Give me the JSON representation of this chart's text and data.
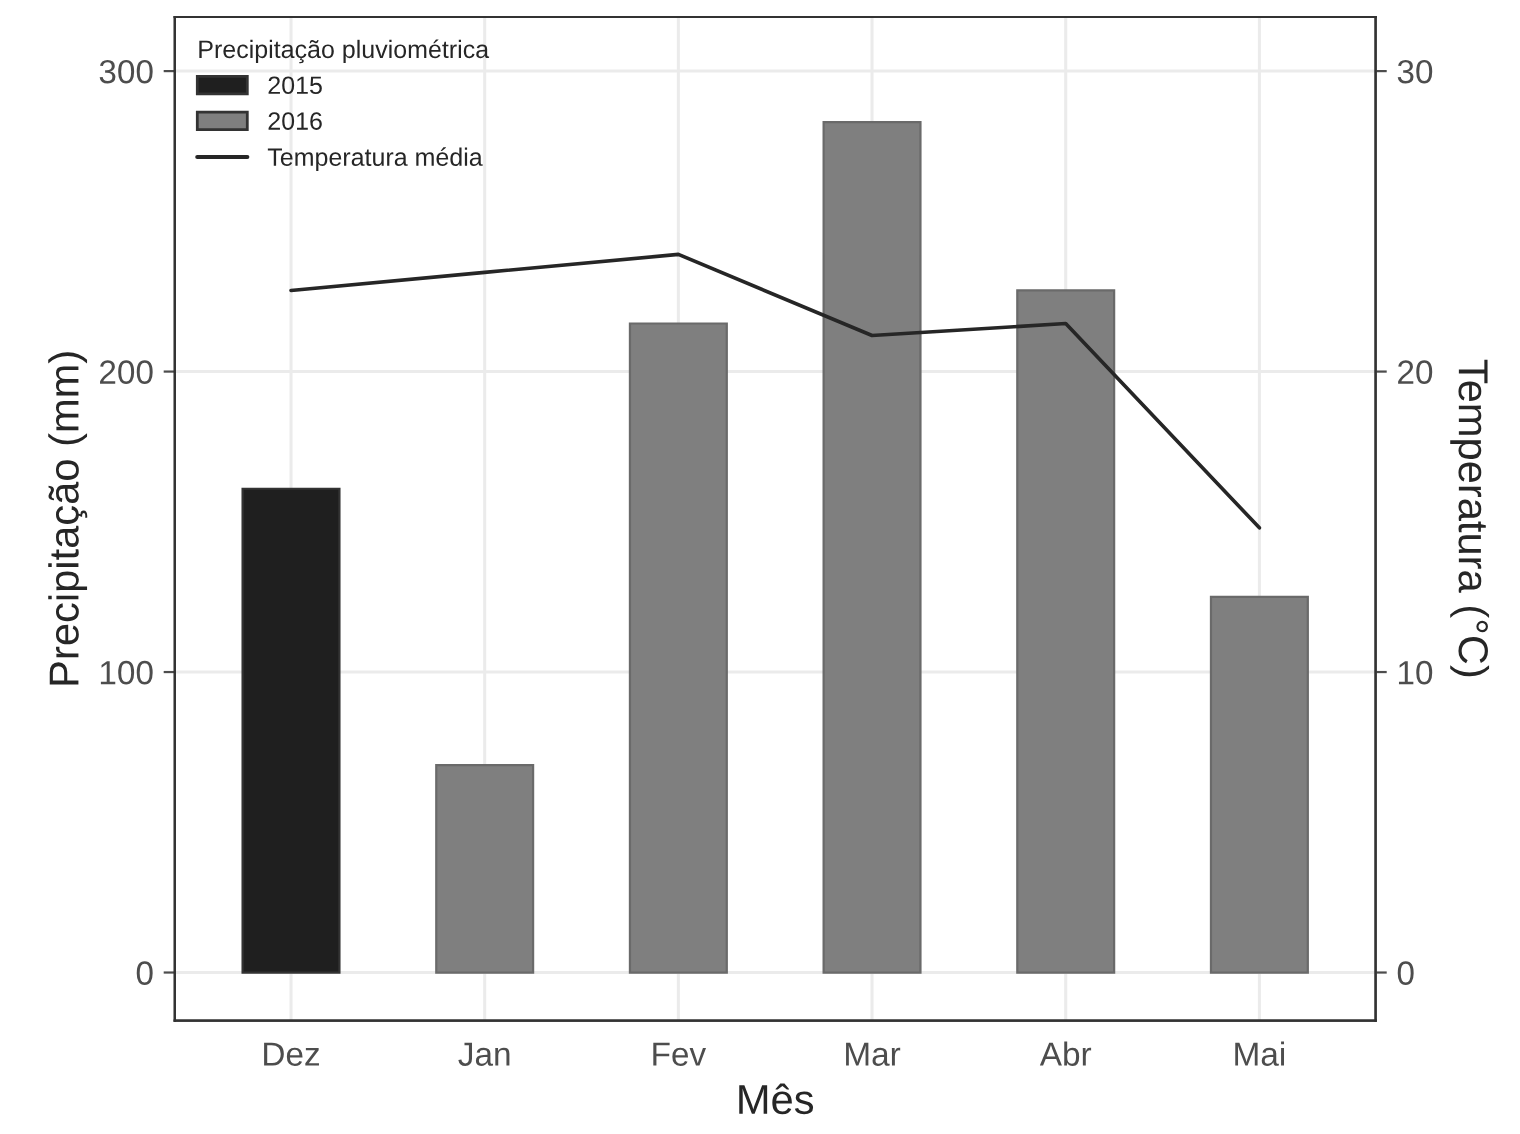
{
  "chart_data": {
    "type": "bar",
    "xlabel": "Mês",
    "ylabel": "Precipitação (mm)",
    "y2label": "Temperatura (°C)",
    "legend_title": "Precipitação pluviométrica",
    "categories": [
      "Dez",
      "Jan",
      "Fev",
      "Mar",
      "Abr",
      "Mai"
    ],
    "series": [
      {
        "name": "2015",
        "color": "#1f1f1f",
        "values": [
          161,
          null,
          null,
          null,
          null,
          null
        ]
      },
      {
        "name": "2016",
        "color": "#7f7f7f",
        "values": [
          null,
          69,
          216,
          283,
          227,
          125
        ]
      },
      {
        "name": "Temperatura média",
        "type": "line",
        "axis": "y2",
        "color": "#262626",
        "values": [
          22.7,
          23.3,
          23.9,
          21.2,
          21.6,
          14.8
        ]
      }
    ],
    "ylim": [
      -16,
      318
    ],
    "yticks": [
      0,
      100,
      200,
      300
    ],
    "y2lim": [
      -1.6,
      31.8
    ],
    "y2ticks": [
      0,
      10,
      20,
      30
    ],
    "grid": true,
    "legend": "top left",
    "marker": "none",
    "line_style": "solid"
  }
}
